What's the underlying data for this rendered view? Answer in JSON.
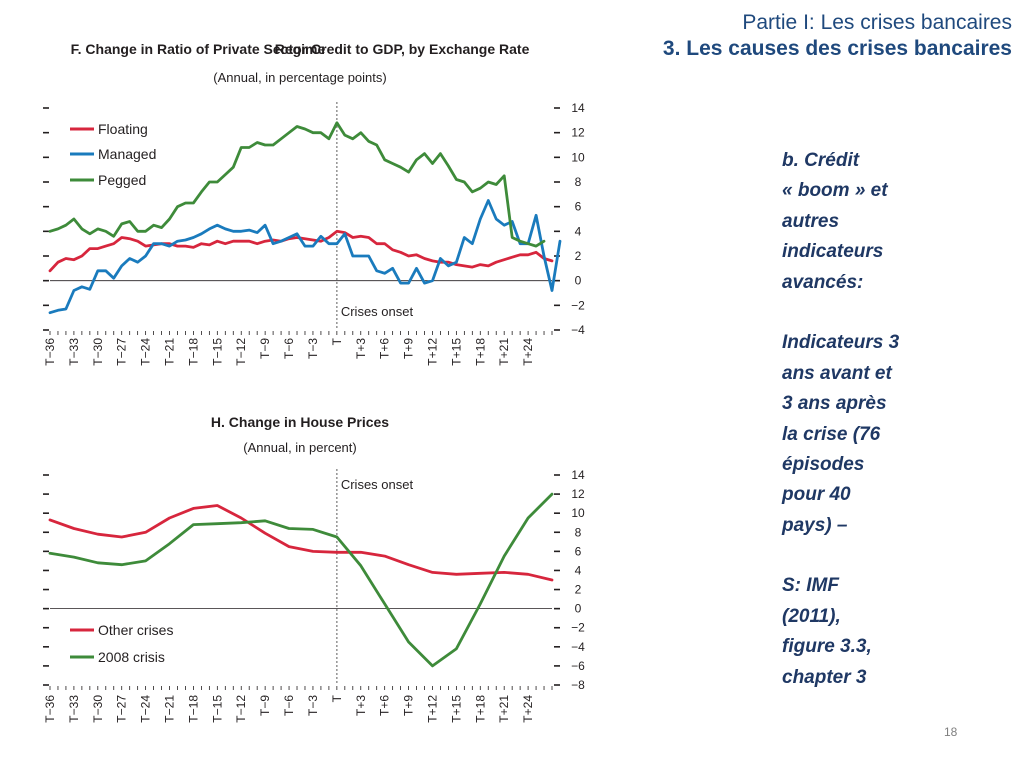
{
  "header": {
    "line1": "Partie I: Les crises bancaires",
    "line2": "3. Les causes des crises bancaires"
  },
  "side_text": "b. Crédit\n« boom » et\nautres\nindicateurs\navancés:\n\nIndicateurs 3\nans avant et\n3 ans après\nla crise (76\népisodes\npour 40\npays) –\n\nS: IMF\n(2011),\nfigure 3.3,\nchapter 3",
  "page_number": "18",
  "chart_data": [
    {
      "type": "line",
      "title": "F. Change in Ratio of Private Sector Credit to GDP, by Exchange Rate Regime",
      "subtitle": "(Annual, in percentage points)",
      "annotation": "Crises onset",
      "x_labels": [
        "T−36",
        "T−33",
        "T−30",
        "T−27",
        "T−24",
        "T−21",
        "T−18",
        "T−15",
        "T−12",
        "T−9",
        "T−6",
        "T−3",
        "T",
        "T+3",
        "T+6",
        "T+9",
        "T+12",
        "T+15",
        "T+18",
        "T+21",
        "T+24"
      ],
      "x_range": [
        -36,
        27
      ],
      "vline_x": 0,
      "y_ticks": [
        14,
        12,
        10,
        8,
        6,
        4,
        2,
        0,
        -2,
        -4
      ],
      "ylim": [
        -4,
        14
      ],
      "legend_position": "top-left",
      "series": [
        {
          "name": "Floating",
          "color": "#d7263d",
          "values": [
            0.8,
            1.5,
            1.8,
            1.7,
            2.0,
            2.6,
            2.6,
            2.8,
            3.0,
            3.5,
            3.4,
            3.2,
            2.8,
            2.9,
            3.0,
            3.0,
            2.8,
            2.8,
            2.7,
            3.0,
            2.9,
            3.2,
            3.0,
            3.2,
            3.2,
            3.2,
            3.0,
            3.2,
            3.3,
            3.2,
            3.4,
            3.5,
            3.4,
            3.3,
            3.2,
            3.5,
            4.0,
            3.9,
            3.5,
            3.6,
            3.5,
            3.0,
            3.0,
            2.5,
            2.3,
            2.0,
            2.1,
            1.8,
            1.6,
            1.5,
            1.5,
            1.3,
            1.2,
            1.1,
            1.3,
            1.2,
            1.5,
            1.7,
            1.9,
            2.1,
            2.1,
            2.3,
            1.8,
            1.6
          ]
        },
        {
          "name": "Managed",
          "color": "#1a7bbd",
          "values": [
            -2.6,
            -2.4,
            -2.3,
            -0.8,
            -0.5,
            -0.7,
            0.8,
            0.8,
            0.2,
            1.2,
            1.8,
            1.5,
            2.0,
            3.0,
            3.0,
            2.8,
            3.2,
            3.3,
            3.5,
            3.8,
            4.2,
            4.5,
            4.2,
            4.0,
            4.0,
            4.1,
            3.9,
            4.5,
            3.0,
            3.2,
            3.5,
            3.8,
            2.8,
            2.8,
            3.6,
            3.0,
            3.0,
            3.8,
            2.0,
            2.0,
            2.0,
            0.8,
            0.6,
            1.0,
            -0.2,
            -0.2,
            1.0,
            -0.2,
            0.0,
            1.8,
            1.2,
            1.5,
            3.5,
            3.0,
            5.0,
            6.5,
            5.0,
            4.5,
            4.8,
            3.0,
            3.0,
            5.3,
            2.0,
            -0.8,
            3.2
          ]
        },
        {
          "name": "Pegged",
          "color": "#3e8b3a",
          "values": [
            4.0,
            4.2,
            4.5,
            5.0,
            4.2,
            3.8,
            4.2,
            4.0,
            3.6,
            4.6,
            4.8,
            4.0,
            4.0,
            4.5,
            4.3,
            5.0,
            6.0,
            6.3,
            6.3,
            7.2,
            8.0,
            8.0,
            8.6,
            9.2,
            10.8,
            10.8,
            11.2,
            11.0,
            11.0,
            11.5,
            12.0,
            12.5,
            12.3,
            12.0,
            12.0,
            11.5,
            12.8,
            11.8,
            11.5,
            12.0,
            11.3,
            11.0,
            9.8,
            9.5,
            9.2,
            8.8,
            9.8,
            10.3,
            9.5,
            10.3,
            9.3,
            8.2,
            8.0,
            7.2,
            7.5,
            8.0,
            7.8,
            8.5,
            3.5,
            3.2,
            3.0,
            2.8,
            3.2
          ]
        }
      ]
    },
    {
      "type": "line",
      "title": "H. Change in House Prices",
      "subtitle": "(Annual, in percent)",
      "annotation": "Crises onset",
      "x_labels": [
        "T−36",
        "T−33",
        "T−30",
        "T−27",
        "T−24",
        "T−21",
        "T−18",
        "T−15",
        "T−12",
        "T−9",
        "T−6",
        "T−3",
        "T",
        "T+3",
        "T+6",
        "T+9",
        "T+12",
        "T+15",
        "T+18",
        "T+21",
        "T+24"
      ],
      "x_range": [
        -36,
        27
      ],
      "vline_x": 0,
      "y_ticks": [
        14,
        12,
        10,
        8,
        6,
        4,
        2,
        0,
        -2,
        -4,
        -6,
        -8
      ],
      "ylim": [
        -8,
        14
      ],
      "legend_position": "bottom-left",
      "series": [
        {
          "name": "Other crises",
          "color": "#d7263d",
          "x": [
            -36,
            -33,
            -30,
            -27,
            -24,
            -21,
            -18,
            -15,
            -12,
            -9,
            -6,
            -3,
            0,
            3,
            6,
            9,
            12,
            15,
            18,
            21,
            24,
            27
          ],
          "values": [
            9.3,
            8.4,
            7.8,
            7.5,
            8.0,
            9.5,
            10.5,
            10.8,
            9.5,
            7.9,
            6.5,
            6.0,
            5.9,
            5.9,
            5.5,
            4.6,
            3.8,
            3.6,
            3.7,
            3.8,
            3.6,
            3.0
          ]
        },
        {
          "name": "2008 crisis",
          "color": "#3e8b3a",
          "x": [
            -36,
            -33,
            -30,
            -27,
            -24,
            -21,
            -18,
            -15,
            -12,
            -9,
            -6,
            -3,
            0,
            3,
            6,
            9,
            12,
            15,
            18,
            21,
            24,
            27
          ],
          "values": [
            5.8,
            5.4,
            4.8,
            4.6,
            5.0,
            6.8,
            8.8,
            8.9,
            9.0,
            9.2,
            8.4,
            8.3,
            7.5,
            4.5,
            0.5,
            -3.5,
            -6.0,
            -4.2,
            0.5,
            5.5,
            9.5,
            12.0
          ]
        }
      ]
    }
  ]
}
